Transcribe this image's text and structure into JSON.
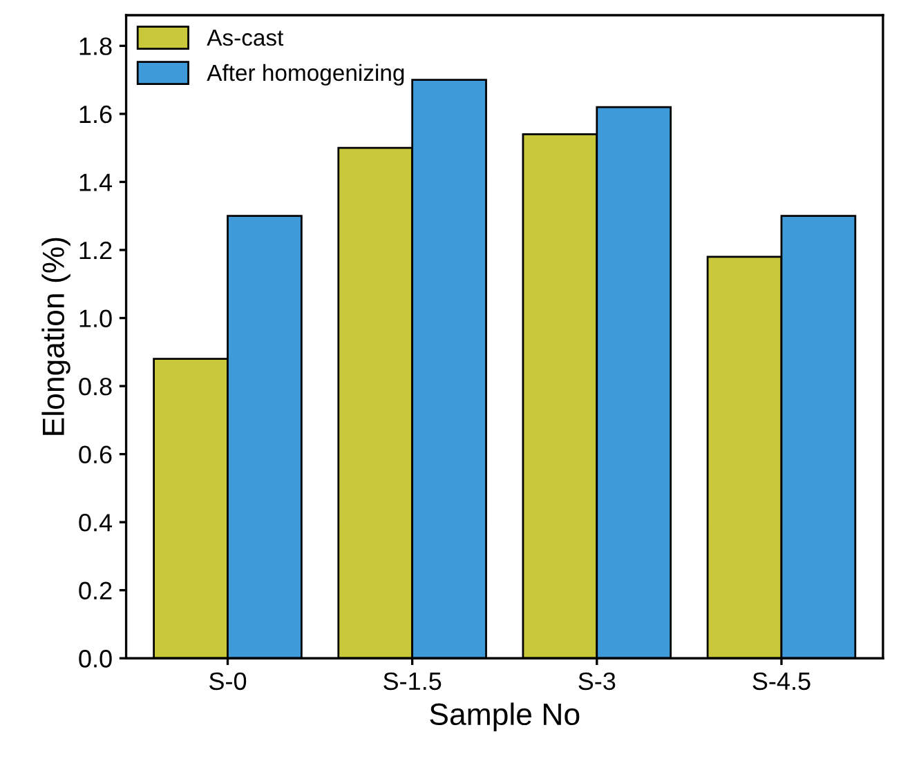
{
  "chart_data": {
    "type": "bar",
    "xlabel": "Sample No",
    "ylabel": "Elongation (%)",
    "categories": [
      "S-0",
      "S-1.5",
      "S-3",
      "S-4.5"
    ],
    "series": [
      {
        "name": "As-cast",
        "color": "#c9c83a",
        "values": [
          0.88,
          1.5,
          1.54,
          1.18
        ]
      },
      {
        "name": "After homogenizing",
        "color": "#3e9ad8",
        "values": [
          1.3,
          1.7,
          1.62,
          1.3
        ]
      }
    ],
    "ylim": [
      0,
      1.89
    ],
    "yticks": [
      {
        "value": 0,
        "label": "0.0"
      },
      0.2,
      0.4,
      0.6,
      0.8,
      {
        "value": 1,
        "label": "1.0"
      },
      1.2,
      1.4,
      1.6,
      1.8
    ],
    "grid": false,
    "legend": "top left"
  }
}
